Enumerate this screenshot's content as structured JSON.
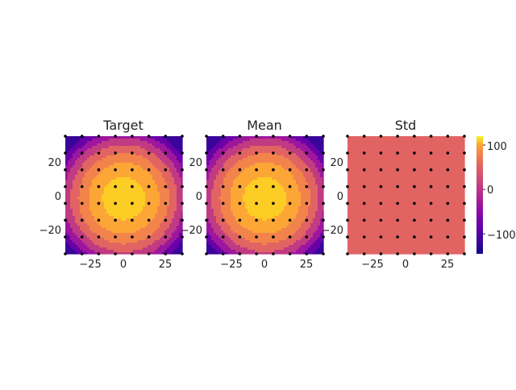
{
  "chart_data": [
    {
      "type": "heatmap",
      "title": "Target",
      "xlim": [
        -35,
        35
      ],
      "ylim": [
        -35,
        35
      ],
      "xticks": [
        -25,
        0,
        25
      ],
      "yticks": [
        20,
        0,
        -20
      ],
      "field": {
        "center_x": 0,
        "center_y": -2,
        "peak": 120,
        "falloff": 0.123
      },
      "sample_points": {
        "x": [
          -35,
          -25,
          -15,
          -5,
          5,
          15,
          25,
          35
        ],
        "y": [
          35,
          25,
          15,
          5,
          -5,
          -15,
          -25,
          -35
        ]
      }
    },
    {
      "type": "heatmap",
      "title": "Mean",
      "xlim": [
        -35,
        35
      ],
      "ylim": [
        -35,
        35
      ],
      "xticks": [
        -25,
        0,
        25
      ],
      "yticks": [
        20,
        0,
        -20
      ],
      "field": {
        "center_x": 0,
        "center_y": -2,
        "peak": 120,
        "falloff": 0.123
      },
      "sample_points": {
        "x": [
          -35,
          -25,
          -15,
          -5,
          5,
          15,
          25,
          35
        ],
        "y": [
          35,
          25,
          15,
          5,
          -5,
          -15,
          -25,
          -35
        ]
      }
    },
    {
      "type": "heatmap",
      "title": "Std",
      "xlim": [
        -35,
        35
      ],
      "ylim": [
        -35,
        35
      ],
      "xticks": [
        -25,
        0,
        25
      ],
      "yticks": [
        20,
        0,
        -20
      ],
      "uniform_value": 0,
      "sample_points": {
        "x": [
          -35,
          -25,
          -15,
          -5,
          5,
          15,
          25,
          35
        ],
        "y": [
          35,
          25,
          15,
          5,
          -5,
          -15,
          -25,
          -35
        ]
      }
    }
  ],
  "colorbar": {
    "colormap": "plasma",
    "range": [
      -145,
      120
    ],
    "ticks": [
      100,
      0,
      -100
    ],
    "levels": [
      -145,
      -110,
      -75,
      -40,
      -5,
      30,
      65,
      100,
      120
    ],
    "level_colors": [
      "#3a049a",
      "#6a00a8",
      "#9c179e",
      "#c13b82",
      "#e16462",
      "#f2844b",
      "#fca636",
      "#fcce25"
    ]
  },
  "labels": {
    "target_title": "Target",
    "mean_title": "Mean",
    "std_title": "Std",
    "xtick_neg": "−25",
    "xtick_zero": "0",
    "xtick_pos": "25",
    "ytick_top": "20",
    "ytick_mid": "0",
    "ytick_bot": "−20",
    "cb_top": "100",
    "cb_mid": "0",
    "cb_bot": "−100"
  }
}
